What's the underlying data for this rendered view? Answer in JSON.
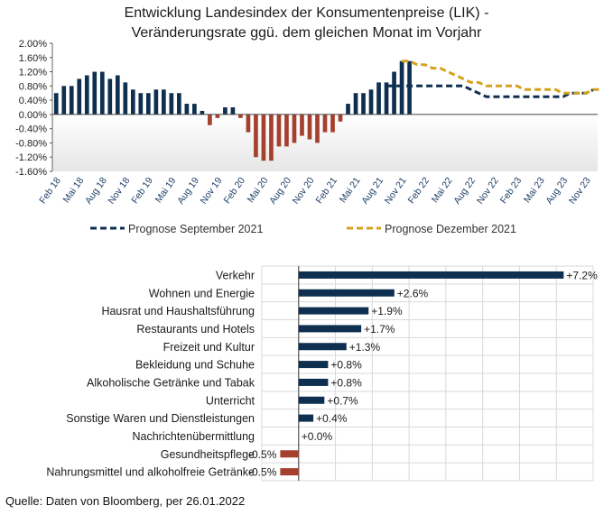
{
  "title": {
    "line1": "Entwicklung Landesindex der Konsumentenpreise (LIK) -",
    "line2": "Veränderungsrate ggü. dem gleichen Monat im Vorjahr"
  },
  "source": "Quelle: Daten von Bloomberg, per 26.01.2022",
  "colors": {
    "bar_positive": "#0e2f4f",
    "bar_negative": "#a5402e",
    "forecast_sep": "#0e2f4f",
    "forecast_dec": "#d4a21f",
    "grid": "#d9d9d9"
  },
  "chart_data": [
    {
      "type": "bar",
      "ylim": [
        -1.6,
        2.0
      ],
      "yticks": [
        "2.00%",
        "1.60%",
        "1.20%",
        "0.80%",
        "0.40%",
        "0.00%",
        "-0.40%",
        "-0.80%",
        "-1.20%",
        "-1.60%"
      ],
      "ytick_values": [
        2.0,
        1.6,
        1.2,
        0.8,
        0.4,
        0.0,
        -0.4,
        -0.8,
        -1.2,
        -1.6
      ],
      "xtick_labels": [
        "Feb 18",
        "Mai 18",
        "Aug 18",
        "Nov 18",
        "Feb 19",
        "Mai 19",
        "Aug 19",
        "Nov 19",
        "Feb 20",
        "Mai 20",
        "Aug 20",
        "Nov 20",
        "Feb 21",
        "Mai 21",
        "Aug 21",
        "Nov 21",
        "Feb 22",
        "Mai 22",
        "Aug 22",
        "Nov 22",
        "Feb 23",
        "Mai 23",
        "Aug 23",
        "Nov 23"
      ],
      "bar_values": [
        0.6,
        0.8,
        0.8,
        1.0,
        1.1,
        1.2,
        1.2,
        1.0,
        1.1,
        0.9,
        0.7,
        0.6,
        0.6,
        0.7,
        0.7,
        0.6,
        0.6,
        0.3,
        0.3,
        0.1,
        -0.3,
        -0.1,
        0.2,
        0.2,
        -0.1,
        -0.5,
        -1.2,
        -1.3,
        -1.3,
        -0.9,
        -0.9,
        -0.8,
        -0.6,
        -0.7,
        -0.8,
        -0.5,
        -0.5,
        -0.2,
        0.3,
        0.6,
        0.6,
        0.7,
        0.9,
        0.9,
        1.2,
        1.5,
        1.5
      ],
      "series": [
        {
          "name": "Prognose September 2021",
          "style": "dashed",
          "values": [
            0.8,
            0.8,
            0.8,
            0.8,
            0.8,
            0.8,
            0.8,
            0.8,
            0.8,
            0.8,
            0.8,
            0.7,
            0.6,
            0.5,
            0.5,
            0.5,
            0.5,
            0.5,
            0.5,
            0.5,
            0.5,
            0.5,
            0.5,
            0.5,
            0.6,
            0.6,
            0.6,
            0.7
          ]
        },
        {
          "name": "Prognose Dezember 2021",
          "style": "dashed",
          "values": [
            1.5,
            1.5,
            1.4,
            1.4,
            1.3,
            1.3,
            1.2,
            1.1,
            1.0,
            0.9,
            0.9,
            0.8,
            0.8,
            0.8,
            0.8,
            0.8,
            0.7,
            0.7,
            0.7,
            0.7,
            0.7,
            0.6,
            0.6,
            0.6,
            0.6,
            0.7,
            0.7
          ]
        }
      ],
      "legend_position": "bottom"
    },
    {
      "type": "bar",
      "orientation": "horizontal",
      "categories": [
        "Verkehr",
        "Wohnen und Energie",
        "Hausrat und Haushaltsführung",
        "Restaurants und Hotels",
        "Freizeit und Kultur",
        "Bekleidung und Schuhe",
        "Alkoholische Getränke und Tabak",
        "Unterricht",
        "Sonstige Waren und Dienstleistungen",
        "Nachrichtenübermittlung",
        "Gesundheitspflege",
        "Nahrungsmittel und alkoholfreie Getränke"
      ],
      "values": [
        7.2,
        2.6,
        1.9,
        1.7,
        1.3,
        0.8,
        0.8,
        0.7,
        0.4,
        0.0,
        -0.5,
        -0.5
      ],
      "labels": [
        "+7.2%",
        "+2.6%",
        "+1.9%",
        "+1.7%",
        "+1.3%",
        "+0.8%",
        "+0.8%",
        "+0.7%",
        "+0.4%",
        "+0.0%",
        "-0.5%",
        "-0.5%"
      ],
      "xlim": [
        -1.0,
        8.0
      ],
      "grid": true
    }
  ]
}
